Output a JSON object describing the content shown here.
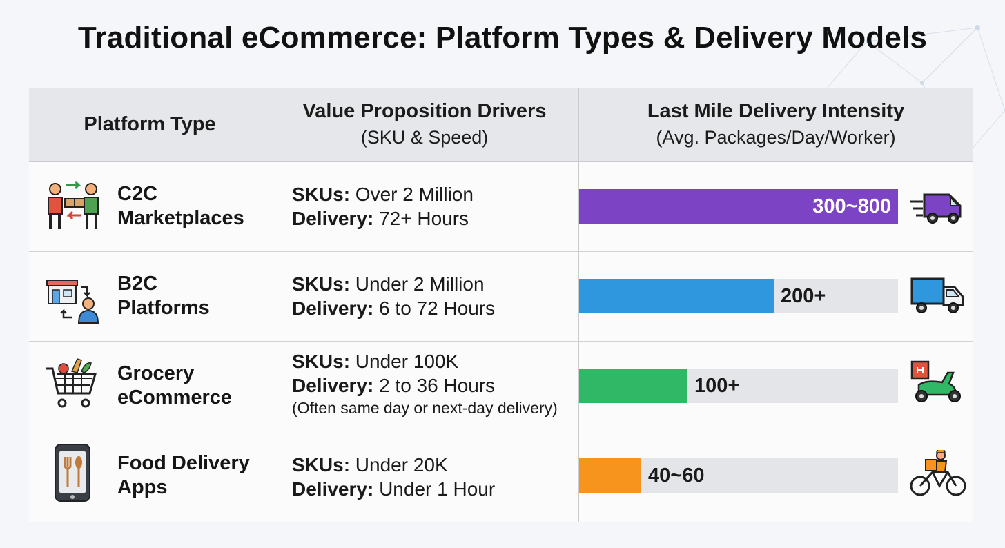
{
  "title": "Traditional eCommerce: Platform Types & Delivery Models",
  "headers": {
    "platform": "Platform Type",
    "value_title": "Value Proposition Drivers",
    "value_sub": "(SKU & Speed)",
    "delivery_title": "Last Mile Delivery Intensity",
    "delivery_sub": "(Avg. Packages/Day/Worker)"
  },
  "colors": {
    "c2c": "#7c44c4",
    "b2c": "#2f97dd",
    "grocery": "#31b866",
    "food": "#f7941d",
    "track": "#e4e5e8"
  },
  "rows": [
    {
      "name_line1": "C2C",
      "name_line2": "Marketplaces",
      "sku_label": "SKUs:",
      "sku_value": " Over 2 Million",
      "delivery_label": "Delivery:",
      "delivery_value": " 72+ Hours",
      "note": "",
      "intensity_label": "300~800",
      "icon": "people-exchange-icon",
      "vehicle": "van-icon"
    },
    {
      "name_line1": "B2C",
      "name_line2": "Platforms",
      "sku_label": "SKUs:",
      "sku_value": " Under 2 Million",
      "delivery_label": "Delivery:",
      "delivery_value": " 6 to 72 Hours",
      "note": "",
      "intensity_label": "200+",
      "icon": "store-customer-icon",
      "vehicle": "truck-icon"
    },
    {
      "name_line1": "Grocery",
      "name_line2": "eCommerce",
      "sku_label": "SKUs:",
      "sku_value": " Under 100K",
      "delivery_label": "Delivery:",
      "delivery_value": " 2 to 36 Hours",
      "note": "(Often same day or next-day delivery)",
      "intensity_label": "100+",
      "icon": "grocery-cart-icon",
      "vehicle": "scooter-icon"
    },
    {
      "name_line1": "Food Delivery",
      "name_line2": "Apps",
      "sku_label": "SKUs:",
      "sku_value": " Under 20K",
      "delivery_label": "Delivery:",
      "delivery_value": " Under 1 Hour",
      "note": "",
      "intensity_label": "40~60",
      "icon": "phone-cutlery-icon",
      "vehicle": "bicycle-courier-icon"
    }
  ],
  "chart_data": {
    "type": "bar",
    "orientation": "horizontal",
    "title": "Last Mile Delivery Intensity",
    "xlabel": "Avg. Packages/Day/Worker",
    "categories": [
      "C2C Marketplaces",
      "B2C Platforms",
      "Grocery eCommerce",
      "Food Delivery Apps"
    ],
    "value_labels": [
      "300~800",
      "200+",
      "100+",
      "40~60"
    ],
    "fill_fraction": [
      1.0,
      0.61,
      0.34,
      0.195
    ]
  }
}
